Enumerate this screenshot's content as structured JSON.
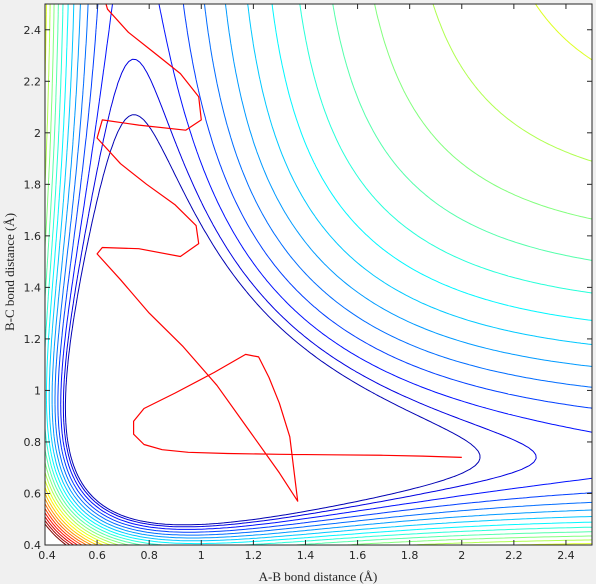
{
  "chart_data": {
    "type": "contour",
    "title": "",
    "xlabel": "A-B bond distance (Å)",
    "ylabel": "B-C bond distance (Å)",
    "xlim": [
      0.4,
      2.5
    ],
    "ylim": [
      0.4,
      2.5
    ],
    "xticks": [
      0.4,
      0.6,
      0.8,
      1,
      1.2,
      1.4,
      1.6,
      1.8,
      2,
      2.2,
      2.4
    ],
    "yticks": [
      0.4,
      0.6,
      0.8,
      1,
      1.2,
      1.4,
      1.6,
      1.8,
      2,
      2.2,
      2.4
    ],
    "grid": false,
    "legend": "none",
    "colormap": "jet",
    "contour_levels": 22,
    "potential_model": {
      "description": "LEPS-like potential energy surface with minimum near (0.84, 0.74) and saddle near (0.93, 0.93)"
    },
    "trajectory": {
      "color": "#ff0000",
      "points": [
        [
          2.0,
          0.74
        ],
        [
          1.85,
          0.745
        ],
        [
          1.7,
          0.748
        ],
        [
          1.5,
          0.75
        ],
        [
          1.3,
          0.752
        ],
        [
          1.1,
          0.755
        ],
        [
          0.95,
          0.76
        ],
        [
          0.85,
          0.77
        ],
        [
          0.78,
          0.79
        ],
        [
          0.74,
          0.83
        ],
        [
          0.74,
          0.88
        ],
        [
          0.78,
          0.93
        ],
        [
          0.9,
          0.99
        ],
        [
          1.05,
          1.07
        ],
        [
          1.17,
          1.14
        ],
        [
          1.22,
          1.13
        ],
        [
          1.26,
          1.05
        ],
        [
          1.3,
          0.95
        ],
        [
          1.34,
          0.82
        ],
        [
          1.37,
          0.57
        ],
        [
          1.3,
          0.68
        ],
        [
          1.18,
          0.85
        ],
        [
          1.06,
          1.02
        ],
        [
          0.93,
          1.17
        ],
        [
          0.8,
          1.3
        ],
        [
          0.69,
          1.43
        ],
        [
          0.6,
          1.53
        ],
        [
          0.62,
          1.555
        ],
        [
          0.76,
          1.55
        ],
        [
          0.92,
          1.52
        ],
        [
          0.99,
          1.57
        ],
        [
          0.98,
          1.64
        ],
        [
          0.9,
          1.72
        ],
        [
          0.79,
          1.8
        ],
        [
          0.69,
          1.88
        ],
        [
          0.6,
          1.98
        ],
        [
          0.62,
          2.05
        ],
        [
          0.76,
          2.03
        ],
        [
          0.94,
          2.01
        ],
        [
          1.0,
          2.05
        ],
        [
          0.99,
          2.14
        ],
        [
          0.92,
          2.23
        ],
        [
          0.82,
          2.31
        ],
        [
          0.72,
          2.39
        ],
        [
          0.64,
          2.48
        ],
        [
          0.62,
          2.55
        ]
      ]
    }
  }
}
